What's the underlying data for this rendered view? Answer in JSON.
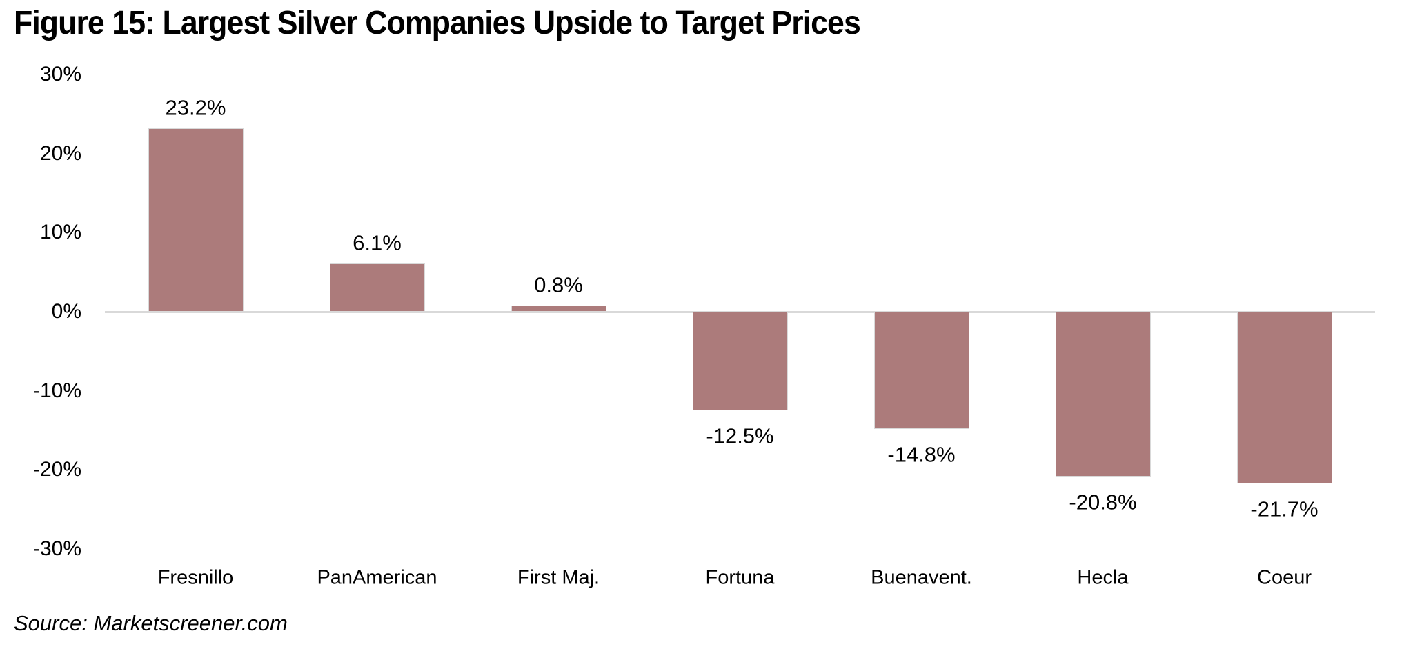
{
  "figure": {
    "title": "Figure 15: Largest Silver Companies Upside to Target Prices",
    "source": "Source: Marketscreener.com"
  },
  "colors": {
    "bar": "#AC7B7B",
    "bar_border": "#D9D9D9",
    "baseline": "#D9D9D9",
    "text": "#000000",
    "background": "#FFFFFF"
  },
  "chart_data": {
    "type": "bar",
    "title": "Figure 15: Largest Silver Companies Upside to Target Prices",
    "categories": [
      "Fresnillo",
      "PanAmerican",
      "First Maj.",
      "Fortuna",
      "Buenavent.",
      "Hecla",
      "Coeur"
    ],
    "values": [
      23.2,
      6.1,
      0.8,
      -12.5,
      -14.8,
      -20.8,
      -21.7
    ],
    "value_labels": [
      "23.2%",
      "6.1%",
      "0.8%",
      "-12.5%",
      "-14.8%",
      "-20.8%",
      "-21.7%"
    ],
    "xlabel": "",
    "ylabel": "",
    "ylim": [
      -30,
      30
    ],
    "yticks": [
      30,
      20,
      10,
      0,
      -10,
      -20,
      -30
    ],
    "ytick_labels": [
      "30%",
      "20%",
      "10%",
      "0%",
      "-10%",
      "-20%",
      "-30%"
    ],
    "grid": false,
    "legend": false,
    "gridlines_drawn": "zero-line-only",
    "annotations": "Source: Marketscreener.com"
  }
}
